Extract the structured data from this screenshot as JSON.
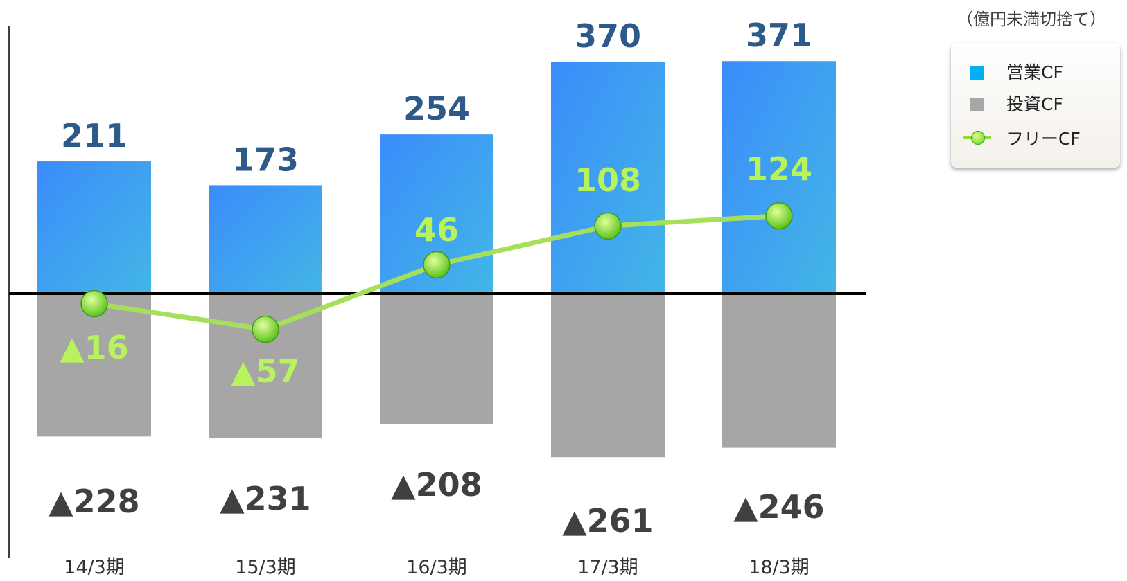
{
  "unit_note": "（億円未満切捨て）",
  "legend": {
    "operating": "営業CF",
    "investing": "投資CF",
    "free": "フリーCF"
  },
  "colors": {
    "operating_top": "#3d8ff8",
    "operating_bottom": "#40b4e8",
    "investing": "#a6a6a6",
    "free_line": "#a6e05a",
    "free_label": "#b8f25c",
    "operating_label": "#2d5a88",
    "investing_label": "#404040"
  },
  "chart_data": {
    "type": "bar",
    "categories": [
      "14/3期",
      "15/3期",
      "16/3期",
      "17/3期",
      "18/3期"
    ],
    "ylim": [
      -261,
      371
    ],
    "series": [
      {
        "name": "営業CF",
        "values": [
          211,
          173,
          254,
          370,
          371
        ],
        "labels": [
          "211",
          "173",
          "254",
          "370",
          "371"
        ]
      },
      {
        "name": "投資CF",
        "values": [
          -228,
          -231,
          -208,
          -261,
          -246
        ],
        "labels": [
          "▲228",
          "▲231",
          "▲208",
          "▲261",
          "▲246"
        ]
      },
      {
        "name": "フリーCF",
        "type": "line",
        "values": [
          -16,
          -57,
          46,
          108,
          124
        ],
        "labels": [
          "▲16",
          "▲57",
          "46",
          "108",
          "124"
        ]
      }
    ]
  }
}
